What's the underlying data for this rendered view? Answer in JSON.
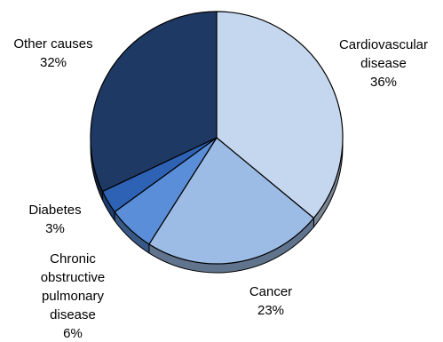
{
  "chart_data": {
    "type": "pie",
    "title": "",
    "slices": [
      {
        "label_lines": [
          "Cardiovascular",
          "disease"
        ],
        "value": 36,
        "value_label": "36%",
        "color": "#c5d7ef"
      },
      {
        "label_lines": [
          "Cancer"
        ],
        "value": 23,
        "value_label": "23%",
        "color": "#9cbbe5"
      },
      {
        "label_lines": [
          "Chronic",
          "obstructive",
          "pulmonary",
          "disease"
        ],
        "value": 6,
        "value_label": "6%",
        "color": "#5b8ed8"
      },
      {
        "label_lines": [
          "Diabetes"
        ],
        "value": 3,
        "value_label": "3%",
        "color": "#2e62b4"
      },
      {
        "label_lines": [
          "Other causes"
        ],
        "value": 32,
        "value_label": "32%",
        "color": "#1e3a64"
      }
    ],
    "start_angle": "12 o'clock",
    "direction": "clockwise",
    "style": "3d-tilted",
    "legend": "none"
  }
}
